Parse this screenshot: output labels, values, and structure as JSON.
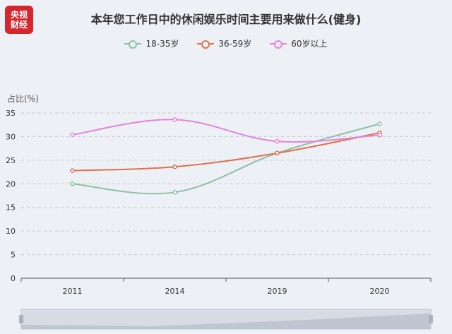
{
  "logo": {
    "line1": "央视",
    "line2": "财经"
  },
  "chart_data": {
    "type": "line",
    "title": "本年您工作日中的休闲娱乐时间主要用来做什么(健身)",
    "ylabel": "占比(%)",
    "xlabel": "",
    "categories": [
      "2011",
      "2014",
      "2019",
      "2020"
    ],
    "ylim": [
      0,
      35
    ],
    "yticks": [
      0,
      5,
      10,
      15,
      20,
      25,
      30,
      35
    ],
    "grid": true,
    "legend_position": "top-center",
    "series": [
      {
        "name": "18-35岁",
        "color": "#8fbfa8",
        "values": [
          20.0,
          18.2,
          26.5,
          32.7
        ]
      },
      {
        "name": "36-59岁",
        "color": "#e0714f",
        "values": [
          22.8,
          23.6,
          26.5,
          30.8
        ]
      },
      {
        "name": "60岁以上",
        "color": "#e583d8",
        "values": [
          30.4,
          33.6,
          29.0,
          30.3
        ]
      }
    ]
  }
}
